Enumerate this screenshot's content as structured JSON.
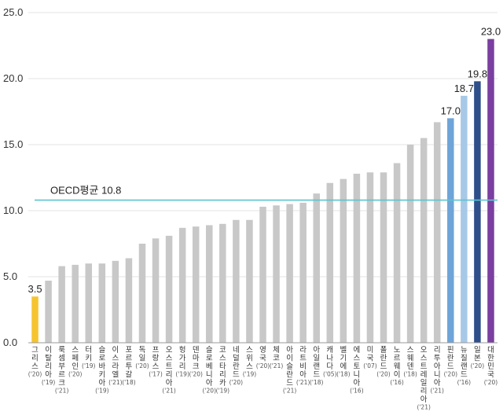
{
  "chart_data": {
    "type": "bar",
    "title": "",
    "xlabel": "",
    "ylabel": "",
    "ylim": [
      0,
      25
    ],
    "yticks": [
      "0.0",
      "5.0",
      "10.0",
      "15.0",
      "20.0",
      "25.0"
    ],
    "grid": true,
    "legend": "none",
    "reference_line": {
      "label": "OECD평균 10.8",
      "value": 10.8,
      "color": "#5bc4d0"
    },
    "default_color": "#c8c8c8",
    "bars": [
      {
        "name": "그리스",
        "year": "('20)",
        "value": 3.5,
        "color": "#f5c430",
        "label": "3.5"
      },
      {
        "name": "이탈리아",
        "year": "('19)",
        "value": 4.7
      },
      {
        "name": "룩셈부르크",
        "year": "('21)",
        "value": 5.8
      },
      {
        "name": "스페인",
        "year": "('20)",
        "value": 5.9
      },
      {
        "name": "터키",
        "year": "('19)",
        "value": 6.0
      },
      {
        "name": "슬로바키아",
        "year": "('19)",
        "value": 6.0
      },
      {
        "name": "이스라엘",
        "year": "('21)",
        "value": 6.2
      },
      {
        "name": "포르투갈",
        "year": "('18)",
        "value": 6.4
      },
      {
        "name": "독일",
        "year": "('20)",
        "value": 7.5
      },
      {
        "name": "프랑스",
        "year": "('17)",
        "value": 7.9
      },
      {
        "name": "오스트리아",
        "year": "('21)",
        "value": 8.1
      },
      {
        "name": "헝가리",
        "year": "('19)",
        "value": 8.7
      },
      {
        "name": "덴마크",
        "year": "('20)",
        "value": 8.8
      },
      {
        "name": "슬로베니아",
        "year": "('20)",
        "value": 8.9
      },
      {
        "name": "코스타리카",
        "year": "('19)",
        "value": 9.0
      },
      {
        "name": "네덜란드",
        "year": "('20)",
        "value": 9.3
      },
      {
        "name": "스위스",
        "year": "('19)",
        "value": 9.3
      },
      {
        "name": "영국",
        "year": "('20)",
        "value": 10.3
      },
      {
        "name": "체코",
        "year": "('21)",
        "value": 10.4
      },
      {
        "name": "아이슬란드",
        "year": "('21)",
        "value": 10.5
      },
      {
        "name": "라트비아",
        "year": "('21)",
        "value": 10.6
      },
      {
        "name": "아일랜드",
        "year": "('18)",
        "value": 11.3
      },
      {
        "name": "캐나다",
        "year": "('05)",
        "value": 12.1
      },
      {
        "name": "벨기에",
        "year": "('18)",
        "value": 12.4
      },
      {
        "name": "에스토니아",
        "year": "('16)",
        "value": 12.8
      },
      {
        "name": "미국",
        "year": "('07)",
        "value": 12.9
      },
      {
        "name": "폴란드",
        "year": "('20)",
        "value": 12.9
      },
      {
        "name": "노르웨이",
        "year": "('16)",
        "value": 13.6
      },
      {
        "name": "스웨덴",
        "year": "('18)",
        "value": 15.0
      },
      {
        "name": "오스트레일리아",
        "year": "('21)",
        "value": 15.5
      },
      {
        "name": "리투아니아",
        "year": "('21)",
        "value": 16.7
      },
      {
        "name": "핀란드",
        "year": "('20)",
        "value": 17.0,
        "color": "#6ea4d8",
        "label": "17.0"
      },
      {
        "name": "뉴질랜드",
        "year": "('16)",
        "value": 18.7,
        "color": "#a8c8e8",
        "label": "18.7"
      },
      {
        "name": "일본",
        "year": "('20)",
        "value": 19.8,
        "color": "#2f4f8a",
        "label": "19.8"
      },
      {
        "name": "대한민국",
        "year": "('20)",
        "value": 23.0,
        "color": "#7a3fa0",
        "label": "23.0"
      }
    ]
  }
}
